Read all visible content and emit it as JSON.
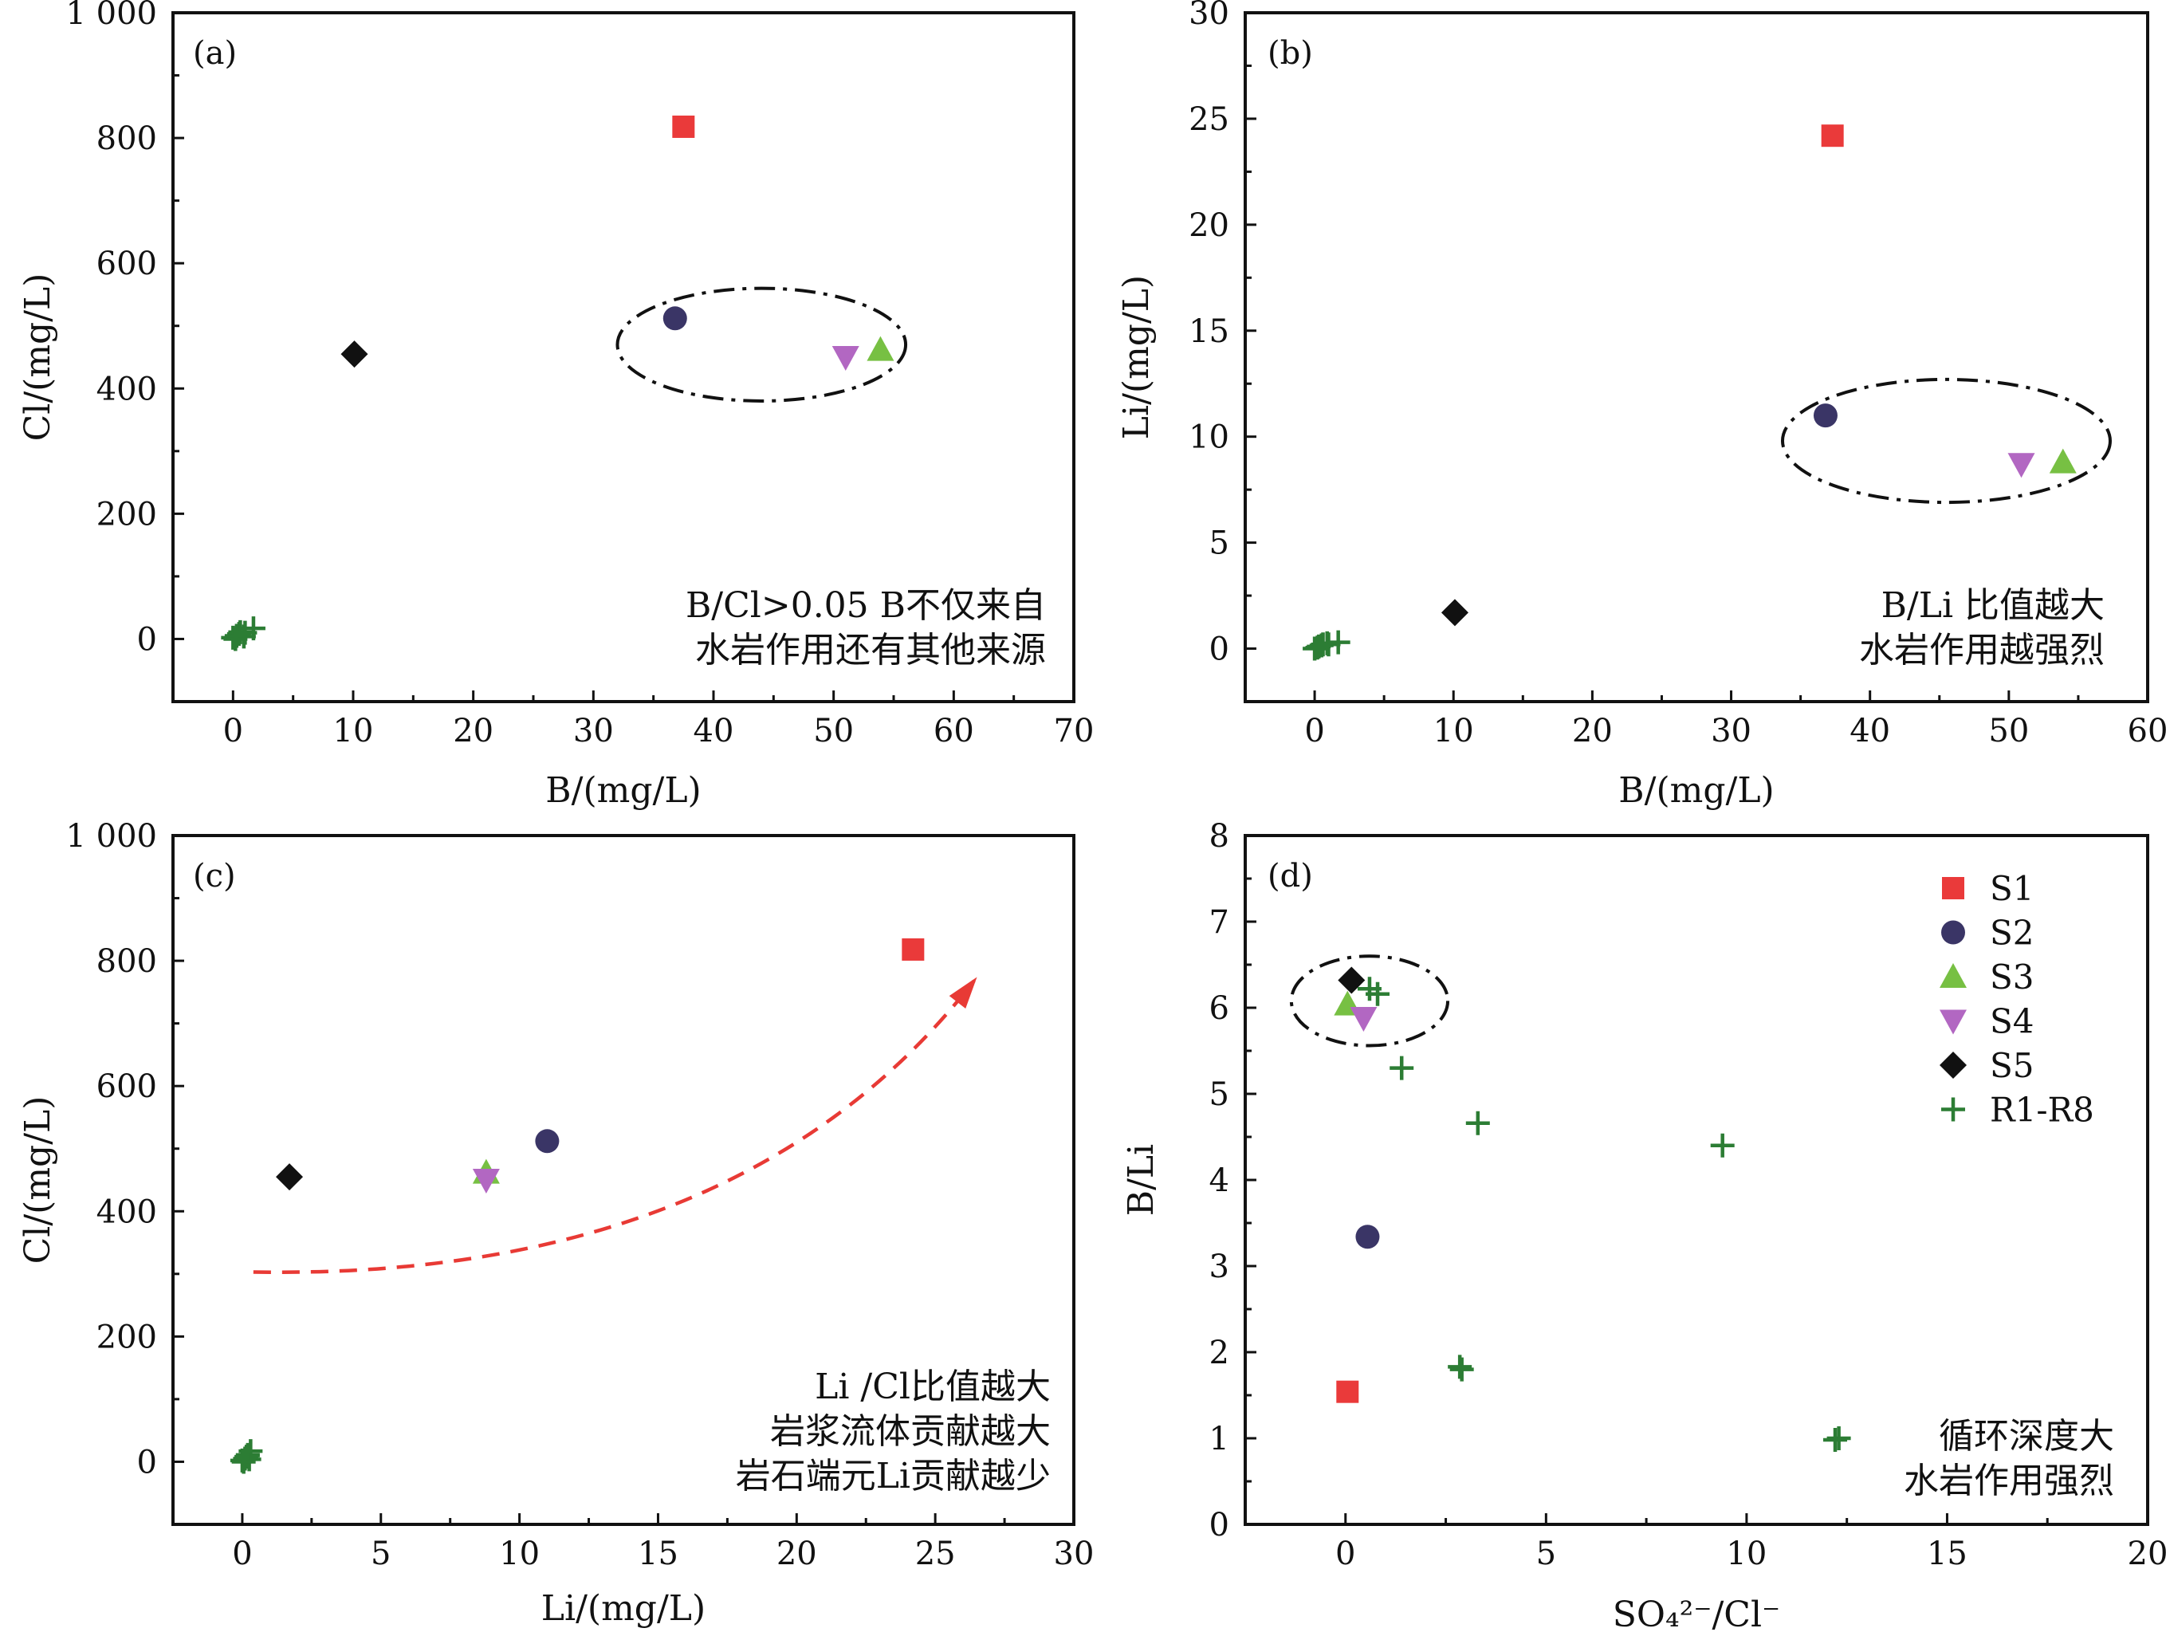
{
  "colors": {
    "S1": "#ea3a3a",
    "S2": "#3a3566",
    "S3": "#77c043",
    "S4": "#b267c2",
    "S5": "#111111",
    "R1-R8": "#2c7d34",
    "trend_arrow": "#e83a35"
  },
  "legend": {
    "placement": "top-right of panel (d)",
    "items": [
      {
        "label": "S1",
        "marker": "square",
        "color": "#ea3a3a"
      },
      {
        "label": "S2",
        "marker": "circle",
        "color": "#3a3566"
      },
      {
        "label": "S3",
        "marker": "triangle-up",
        "color": "#77c043"
      },
      {
        "label": "S4",
        "marker": "triangle-down",
        "color": "#b267c2"
      },
      {
        "label": "S5",
        "marker": "diamond",
        "color": "#111111"
      },
      {
        "label": "R1-R8",
        "marker": "plus",
        "color": "#2c7d34"
      }
    ]
  },
  "chart_data": [
    {
      "panel": "(a)",
      "type": "scatter",
      "xlabel": "B/(mg/L)",
      "ylabel": "Cl/(mg/L)",
      "xlim": [
        -5,
        70
      ],
      "ylim": [
        -100,
        1000
      ],
      "xticks": [
        0,
        10,
        20,
        30,
        40,
        50,
        60,
        70
      ],
      "xtick_labels": [
        "0",
        "10",
        "20",
        "30",
        "40",
        "50",
        "60",
        "70"
      ],
      "yticks": [
        0,
        200,
        400,
        600,
        800,
        1000
      ],
      "ytick_labels": [
        "0",
        "200",
        "400",
        "600",
        "800",
        "1 000"
      ],
      "grid": false,
      "annotation": [
        "B/Cl>0.05  B不仅来自",
        "水岩作用还有其他来源"
      ],
      "ellipse": {
        "cx": 44,
        "cy": 470,
        "rx": 12,
        "ry": 90
      },
      "series": [
        {
          "name": "S1",
          "points": [
            [
              37.5,
              818
            ]
          ]
        },
        {
          "name": "S2",
          "points": [
            [
              36.8,
              512
            ]
          ]
        },
        {
          "name": "S3",
          "points": [
            [
              53.9,
              462
            ]
          ]
        },
        {
          "name": "S4",
          "points": [
            [
              51,
              450
            ]
          ]
        },
        {
          "name": "S5",
          "points": [
            [
              10.1,
              455
            ]
          ]
        },
        {
          "name": "R1-R8",
          "points": [
            [
              0,
              2
            ],
            [
              0.3,
              5
            ],
            [
              0.5,
              8
            ],
            [
              0.6,
              11
            ],
            [
              0.9,
              4
            ],
            [
              1,
              10
            ],
            [
              1.7,
              17
            ],
            [
              0.2,
              0
            ]
          ]
        }
      ]
    },
    {
      "panel": "(b)",
      "type": "scatter",
      "xlabel": "B/(mg/L)",
      "ylabel": "Li/(mg/L)",
      "xlim": [
        -5,
        60
      ],
      "ylim": [
        -2.5,
        30
      ],
      "xticks": [
        0,
        10,
        20,
        30,
        40,
        50,
        60
      ],
      "xtick_labels": [
        "0",
        "10",
        "20",
        "30",
        "40",
        "50",
        "60"
      ],
      "yticks": [
        0,
        5,
        10,
        15,
        20,
        25,
        30
      ],
      "ytick_labels": [
        "0",
        "5",
        "10",
        "15",
        "20",
        "25",
        "30"
      ],
      "grid": false,
      "annotation": [
        "B/Li  比值越大",
        "水岩作用越强烈"
      ],
      "ellipse": {
        "cx": 45.5,
        "cy": 9.8,
        "rx": 11.8,
        "ry": 2.9
      },
      "series": [
        {
          "name": "S1",
          "points": [
            [
              37.3,
              24.2
            ]
          ]
        },
        {
          "name": "S2",
          "points": [
            [
              36.8,
              11
            ]
          ]
        },
        {
          "name": "S3",
          "points": [
            [
              53.9,
              8.8
            ]
          ]
        },
        {
          "name": "S4",
          "points": [
            [
              50.9,
              8.7
            ]
          ]
        },
        {
          "name": "S5",
          "points": [
            [
              10.1,
              1.7
            ]
          ]
        },
        {
          "name": "R1-R8",
          "points": [
            [
              0,
              0
            ],
            [
              0.3,
              0.1
            ],
            [
              0.5,
              0.15
            ],
            [
              0.6,
              0.2
            ],
            [
              0.9,
              0.25
            ],
            [
              1,
              0.2
            ],
            [
              1.7,
              0.3
            ],
            [
              0.2,
              0.05
            ]
          ]
        }
      ]
    },
    {
      "panel": "(c)",
      "type": "scatter",
      "xlabel": "Li/(mg/L)",
      "ylabel": "Cl/(mg/L)",
      "xlim": [
        -2.5,
        30
      ],
      "ylim": [
        -100,
        1000
      ],
      "xticks": [
        0,
        5,
        10,
        15,
        20,
        25,
        30
      ],
      "xtick_labels": [
        "0",
        "5",
        "10",
        "15",
        "20",
        "25",
        "30"
      ],
      "yticks": [
        0,
        200,
        400,
        600,
        800,
        1000
      ],
      "ytick_labels": [
        "0",
        "200",
        "400",
        "600",
        "800",
        "1 000"
      ],
      "grid": false,
      "annotation": [
        "Li /Cl比值越大",
        "岩浆流体贡献越大",
        "岩石端元Li贡献越少"
      ],
      "trend_arrow": {
        "start": [
          0.4,
          303
        ],
        "control": [
          18,
          290
        ],
        "end": [
          26.4,
          768
        ]
      },
      "series": [
        {
          "name": "S1",
          "points": [
            [
              24.2,
              818
            ]
          ]
        },
        {
          "name": "S2",
          "points": [
            [
              11,
              512
            ]
          ]
        },
        {
          "name": "S3",
          "points": [
            [
              8.8,
              462
            ]
          ]
        },
        {
          "name": "S4",
          "points": [
            [
              8.8,
              450
            ]
          ]
        },
        {
          "name": "S5",
          "points": [
            [
              1.7,
              455
            ]
          ]
        },
        {
          "name": "R1-R8",
          "points": [
            [
              0,
              2
            ],
            [
              0.1,
              5
            ],
            [
              0.15,
              8
            ],
            [
              0.2,
              11
            ],
            [
              0.25,
              4
            ],
            [
              0.2,
              10
            ],
            [
              0.3,
              17
            ],
            [
              0.05,
              0
            ]
          ]
        }
      ]
    },
    {
      "panel": "(d)",
      "type": "scatter",
      "xlabel": "SO₄²⁻/Cl⁻",
      "ylabel": "B/Li",
      "xlim": [
        -2.5,
        20
      ],
      "ylim": [
        0,
        8
      ],
      "xticks": [
        0,
        5,
        10,
        15,
        20
      ],
      "xtick_labels": [
        "0",
        "5",
        "10",
        "15",
        "20"
      ],
      "yticks": [
        0,
        1,
        2,
        3,
        4,
        5,
        6,
        7,
        8
      ],
      "ytick_labels": [
        "0",
        "1",
        "2",
        "3",
        "4",
        "5",
        "6",
        "7",
        "8"
      ],
      "grid": false,
      "annotation": [
        "循环深度大",
        "水岩作用强烈"
      ],
      "ellipse": {
        "cx": 0.6,
        "cy": 6.08,
        "rx": 1.95,
        "ry": 0.52
      },
      "series": [
        {
          "name": "S1",
          "points": [
            [
              0.05,
              1.54
            ]
          ]
        },
        {
          "name": "S2",
          "points": [
            [
              0.55,
              3.34
            ]
          ]
        },
        {
          "name": "S3",
          "points": [
            [
              0.05,
              6.04
            ]
          ]
        },
        {
          "name": "S4",
          "points": [
            [
              0.45,
              5.88
            ]
          ]
        },
        {
          "name": "S5",
          "points": [
            [
              0.15,
              6.32
            ]
          ]
        },
        {
          "name": "R1-R8",
          "points": [
            [
              0.6,
              6.22
            ],
            [
              0.8,
              6.16
            ],
            [
              1.4,
              5.3
            ],
            [
              3.3,
              4.66
            ],
            [
              9.4,
              4.4
            ],
            [
              2.85,
              1.83
            ],
            [
              2.9,
              1.8
            ],
            [
              12.3,
              1.0
            ]
          ]
        }
      ]
    }
  ]
}
